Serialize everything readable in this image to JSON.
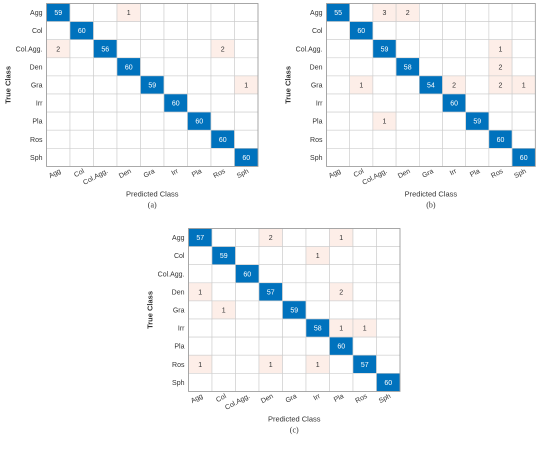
{
  "chart_data": [
    {
      "type": "heatmap",
      "caption": "(a)",
      "xlabel": "Predicted Class",
      "ylabel": "True Class",
      "classes": [
        "Agg",
        "Col",
        "Col.Agg.",
        "Den",
        "Gra",
        "Irr",
        "Pla",
        "Ros",
        "Sph"
      ],
      "matrix": [
        [
          59,
          0,
          0,
          1,
          0,
          0,
          0,
          0,
          0
        ],
        [
          0,
          60,
          0,
          0,
          0,
          0,
          0,
          0,
          0
        ],
        [
          2,
          0,
          56,
          0,
          0,
          0,
          0,
          2,
          0
        ],
        [
          0,
          0,
          0,
          60,
          0,
          0,
          0,
          0,
          0
        ],
        [
          0,
          0,
          0,
          0,
          59,
          0,
          0,
          0,
          1
        ],
        [
          0,
          0,
          0,
          0,
          0,
          60,
          0,
          0,
          0
        ],
        [
          0,
          0,
          0,
          0,
          0,
          0,
          60,
          0,
          0
        ],
        [
          0,
          0,
          0,
          0,
          0,
          0,
          0,
          60,
          0
        ],
        [
          0,
          0,
          0,
          0,
          0,
          0,
          0,
          0,
          60
        ]
      ]
    },
    {
      "type": "heatmap",
      "caption": "(b)",
      "xlabel": "Predicted Class",
      "ylabel": "True Class",
      "classes": [
        "Agg",
        "Col",
        "Col.Agg.",
        "Den",
        "Gra",
        "Irr",
        "Pla",
        "Ros",
        "Sph"
      ],
      "matrix": [
        [
          55,
          0,
          3,
          2,
          0,
          0,
          0,
          0,
          0
        ],
        [
          0,
          60,
          0,
          0,
          0,
          0,
          0,
          0,
          0
        ],
        [
          0,
          0,
          59,
          0,
          0,
          0,
          0,
          1,
          0
        ],
        [
          0,
          0,
          0,
          58,
          0,
          0,
          0,
          2,
          0
        ],
        [
          0,
          1,
          0,
          0,
          54,
          2,
          0,
          2,
          1
        ],
        [
          0,
          0,
          0,
          0,
          0,
          60,
          0,
          0,
          0
        ],
        [
          0,
          0,
          1,
          0,
          0,
          0,
          59,
          0,
          0
        ],
        [
          0,
          0,
          0,
          0,
          0,
          0,
          0,
          60,
          0
        ],
        [
          0,
          0,
          0,
          0,
          0,
          0,
          0,
          0,
          60
        ]
      ]
    },
    {
      "type": "heatmap",
      "caption": "(c)",
      "xlabel": "Predicted Class",
      "ylabel": "True Class",
      "classes": [
        "Agg",
        "Col",
        "Col.Agg.",
        "Den",
        "Gra",
        "Irr",
        "Pla",
        "Ros",
        "Sph"
      ],
      "matrix": [
        [
          57,
          0,
          0,
          2,
          0,
          0,
          1,
          0,
          0
        ],
        [
          0,
          59,
          0,
          0,
          0,
          1,
          0,
          0,
          0
        ],
        [
          0,
          0,
          60,
          0,
          0,
          0,
          0,
          0,
          0
        ],
        [
          1,
          0,
          0,
          57,
          0,
          0,
          2,
          0,
          0
        ],
        [
          0,
          1,
          0,
          0,
          59,
          0,
          0,
          0,
          0
        ],
        [
          0,
          0,
          0,
          0,
          0,
          58,
          1,
          1,
          0
        ],
        [
          0,
          0,
          0,
          0,
          0,
          0,
          60,
          0,
          0
        ],
        [
          1,
          0,
          0,
          1,
          0,
          1,
          0,
          57,
          0
        ],
        [
          0,
          0,
          0,
          0,
          0,
          0,
          0,
          0,
          60
        ]
      ]
    }
  ],
  "colors": {
    "diagonal": "#0072bd",
    "off_diagonal": "#fdeee8",
    "empty": "#ffffff",
    "grid": "#cccccc",
    "text_dark": "#333333",
    "text_light": "#ffffff"
  }
}
